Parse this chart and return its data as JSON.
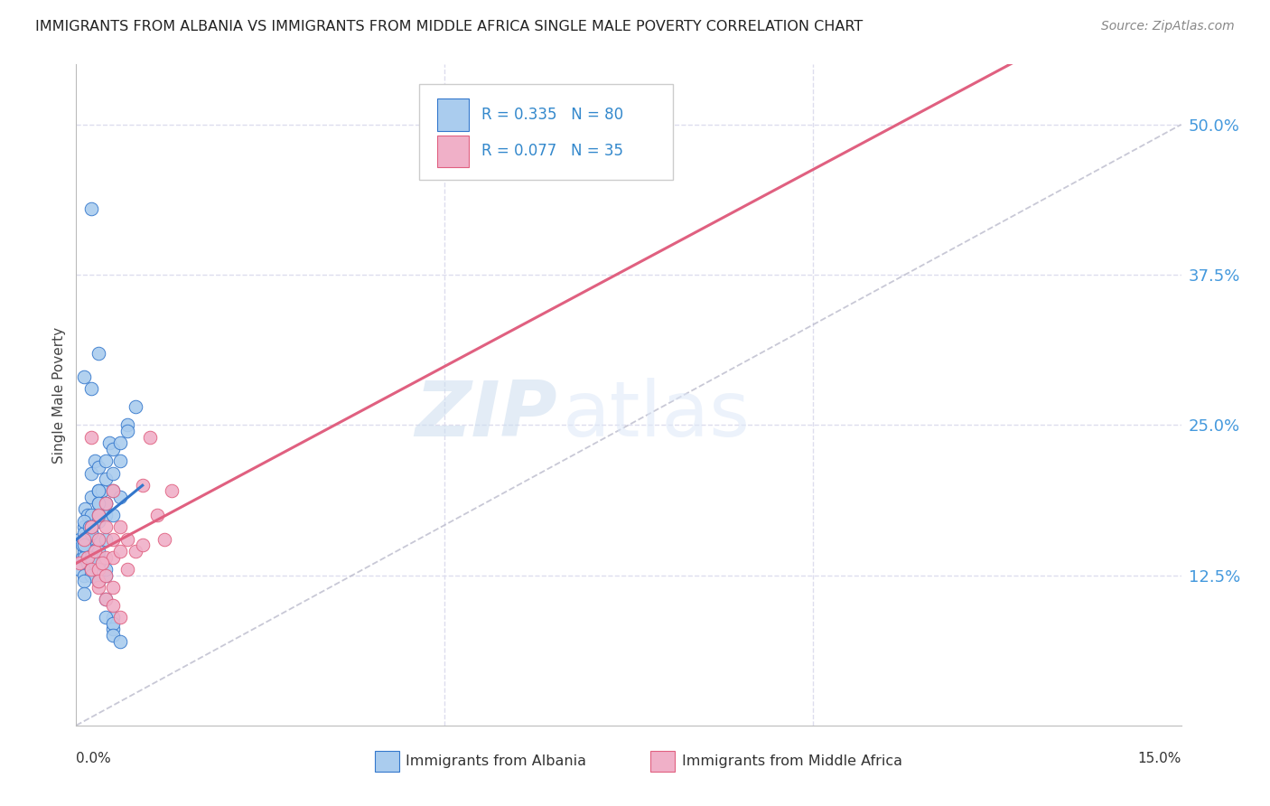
{
  "title": "IMMIGRANTS FROM ALBANIA VS IMMIGRANTS FROM MIDDLE AFRICA SINGLE MALE POVERTY CORRELATION CHART",
  "source": "Source: ZipAtlas.com",
  "ylabel": "Single Male Poverty",
  "ytick_labels": [
    "50.0%",
    "37.5%",
    "25.0%",
    "12.5%"
  ],
  "ytick_values": [
    0.5,
    0.375,
    0.25,
    0.125
  ],
  "xlim": [
    0.0,
    0.15
  ],
  "ylim": [
    0.0,
    0.55
  ],
  "legend1_r": "0.335",
  "legend1_n": "80",
  "legend2_r": "0.077",
  "legend2_n": "35",
  "legend1_label": "Immigrants from Albania",
  "legend2_label": "Immigrants from Middle Africa",
  "color_albania": "#aaccee",
  "color_middle_africa": "#f0b0c8",
  "color_regression_albania": "#3377cc",
  "color_regression_middle_africa": "#e06080",
  "color_diagonal": "#bbbbcc",
  "background_color": "#ffffff",
  "grid_color": "#ddddee",
  "albania_x": [
    0.0005,
    0.0008,
    0.001,
    0.001,
    0.0012,
    0.0015,
    0.0015,
    0.002,
    0.002,
    0.002,
    0.002,
    0.002,
    0.0025,
    0.003,
    0.003,
    0.003,
    0.003,
    0.003,
    0.003,
    0.0035,
    0.004,
    0.004,
    0.004,
    0.004,
    0.0045,
    0.005,
    0.005,
    0.005,
    0.005,
    0.006,
    0.006,
    0.006,
    0.007,
    0.007,
    0.008,
    0.0005,
    0.001,
    0.001,
    0.0015,
    0.0015,
    0.002,
    0.002,
    0.002,
    0.003,
    0.003,
    0.003,
    0.004,
    0.004,
    0.005,
    0.005,
    0.001,
    0.001,
    0.0008,
    0.0012,
    0.0018,
    0.002,
    0.0025,
    0.003,
    0.003,
    0.004,
    0.004,
    0.005,
    0.005,
    0.006,
    0.003,
    0.004,
    0.003,
    0.002,
    0.001,
    0.001,
    0.002,
    0.003,
    0.004,
    0.002,
    0.003,
    0.001,
    0.002,
    0.003,
    0.002,
    0.001
  ],
  "albania_y": [
    0.155,
    0.14,
    0.165,
    0.145,
    0.18,
    0.175,
    0.13,
    0.19,
    0.175,
    0.16,
    0.145,
    0.21,
    0.22,
    0.195,
    0.185,
    0.17,
    0.155,
    0.14,
    0.215,
    0.195,
    0.185,
    0.175,
    0.205,
    0.22,
    0.235,
    0.21,
    0.23,
    0.195,
    0.175,
    0.22,
    0.235,
    0.19,
    0.25,
    0.245,
    0.265,
    0.13,
    0.125,
    0.14,
    0.135,
    0.155,
    0.13,
    0.125,
    0.145,
    0.135,
    0.12,
    0.14,
    0.125,
    0.105,
    0.09,
    0.08,
    0.16,
    0.17,
    0.15,
    0.155,
    0.165,
    0.14,
    0.135,
    0.14,
    0.145,
    0.13,
    0.09,
    0.085,
    0.075,
    0.07,
    0.195,
    0.185,
    0.175,
    0.16,
    0.12,
    0.11,
    0.14,
    0.135,
    0.155,
    0.43,
    0.31,
    0.29,
    0.28,
    0.185,
    0.165,
    0.15
  ],
  "middle_africa_x": [
    0.0005,
    0.001,
    0.0015,
    0.002,
    0.002,
    0.0025,
    0.003,
    0.003,
    0.003,
    0.004,
    0.004,
    0.004,
    0.005,
    0.005,
    0.005,
    0.006,
    0.006,
    0.007,
    0.007,
    0.008,
    0.009,
    0.01,
    0.011,
    0.012,
    0.013,
    0.003,
    0.004,
    0.005,
    0.006,
    0.003,
    0.002,
    0.004,
    0.005,
    0.0035,
    0.009
  ],
  "middle_africa_y": [
    0.135,
    0.155,
    0.14,
    0.165,
    0.13,
    0.145,
    0.155,
    0.13,
    0.175,
    0.165,
    0.14,
    0.185,
    0.155,
    0.14,
    0.195,
    0.145,
    0.165,
    0.155,
    0.13,
    0.145,
    0.15,
    0.24,
    0.175,
    0.155,
    0.195,
    0.115,
    0.105,
    0.1,
    0.09,
    0.12,
    0.24,
    0.125,
    0.115,
    0.135,
    0.2
  ],
  "watermark_zip": "ZIP",
  "watermark_atlas": "atlas"
}
